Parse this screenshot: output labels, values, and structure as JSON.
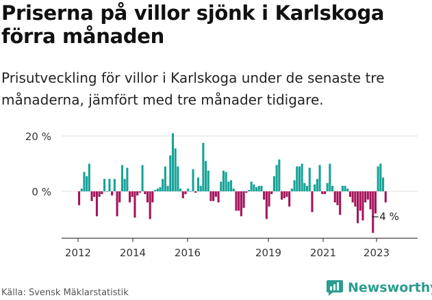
{
  "title": "Priserna på villor sjönk i Karlskoga förra månaden",
  "subtitle": "Prisutveckling för villor i Karlskoga under de senaste tre månaderna, jämfört med tre månader tidigare.",
  "source": "Källa: Svensk Mäklarstatistik",
  "brand": "Newsworthy",
  "colors": {
    "positive": "#17a398",
    "negative": "#a4145a",
    "axis": "#222222",
    "grid": "#dddddd"
  },
  "chart_data": {
    "type": "bar",
    "ylim": [
      -17,
      22
    ],
    "y_ticks": [
      {
        "value": 20,
        "label": "20 %"
      },
      {
        "value": 0,
        "label": "0 %"
      }
    ],
    "x_ticks": [
      "2012",
      "2014",
      "2016",
      "2019",
      "2021",
      "2023"
    ],
    "annotation": {
      "label": "−4 %",
      "value": -4
    },
    "series": [
      {
        "values": [
          -5,
          1,
          7,
          5.5,
          10,
          -3.5,
          -2,
          -9,
          -2,
          -1,
          4.5,
          0,
          4.5,
          -1.5,
          4.5,
          -9,
          -4,
          9.5,
          4.5,
          8.5,
          -4,
          -2,
          -9.5,
          -1.5,
          -0.5,
          9.5,
          -1,
          -4,
          -10,
          -4,
          0.5,
          1,
          1.5,
          4.5,
          9,
          2,
          13,
          21,
          15.5,
          9,
          1,
          -2.5,
          -1,
          1,
          0,
          8,
          -0.5,
          5,
          2,
          17.5,
          11,
          7.5,
          -3.5,
          -3.5,
          -2,
          -4,
          3.5,
          7.5,
          7,
          3.5,
          4,
          1,
          -7,
          -7,
          -9,
          -6,
          -0.5,
          0.5,
          3.5,
          2.5,
          1.5,
          2,
          2,
          -3,
          -10,
          -5.5,
          -1,
          5.5,
          9.5,
          11.5,
          -3,
          -2.5,
          -2,
          -5.5,
          1,
          4,
          9,
          9,
          10,
          3,
          2,
          8.5,
          -7.5,
          2.5,
          4.5,
          9.5,
          -1,
          -1,
          3,
          10,
          2,
          -4,
          -5,
          -8.5,
          2,
          2,
          1,
          -2,
          -4,
          -5.5,
          -11.5,
          -7,
          -10.5,
          -4,
          -3,
          -6.5,
          -15,
          -8,
          9,
          10,
          5,
          -4
        ]
      }
    ]
  }
}
